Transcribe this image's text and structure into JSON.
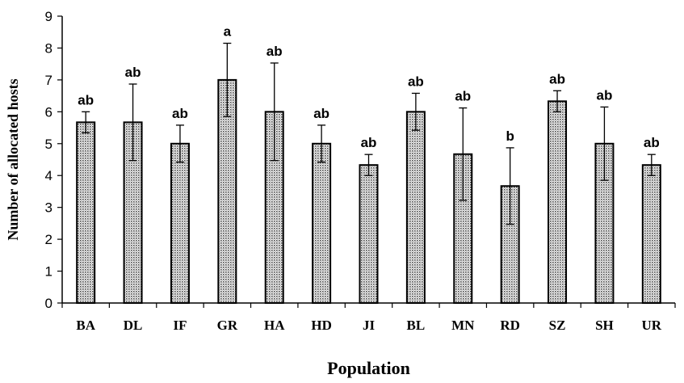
{
  "chart_data": {
    "type": "bar",
    "title": "",
    "xlabel": "Population",
    "ylabel": "Number of allocated hosts",
    "ylim": [
      0,
      9
    ],
    "yticks": [
      0,
      1,
      2,
      3,
      4,
      5,
      6,
      7,
      8,
      9
    ],
    "grid": false,
    "categories": [
      "BA",
      "DL",
      "IF",
      "GR",
      "HA",
      "HD",
      "JI",
      "BL",
      "MN",
      "RD",
      "SZ",
      "SH",
      "UR"
    ],
    "values": [
      5.67,
      5.67,
      5.0,
      7.0,
      6.0,
      5.0,
      4.33,
      6.0,
      4.67,
      3.67,
      6.33,
      5.0,
      4.33
    ],
    "errors": [
      0.33,
      1.2,
      0.58,
      1.15,
      1.53,
      0.58,
      0.33,
      0.58,
      1.45,
      1.2,
      0.33,
      1.15,
      0.33
    ],
    "significance_labels": [
      "ab",
      "ab",
      "ab",
      "a",
      "ab",
      "ab",
      "ab",
      "ab",
      "ab",
      "b",
      "ab",
      "ab",
      "ab"
    ],
    "bar_fill": "#d9d9d9",
    "bar_stroke": "#000000"
  }
}
